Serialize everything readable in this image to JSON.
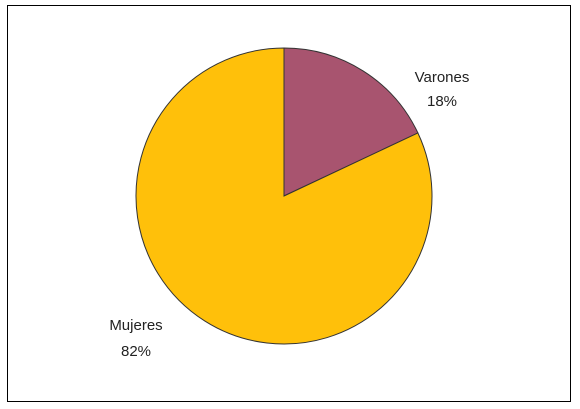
{
  "chart_data": {
    "type": "pie",
    "slices": [
      {
        "label": "Varones",
        "value": 18,
        "value_label": "18%",
        "color": "#A8546F"
      },
      {
        "label": "Mujeres",
        "value": 82,
        "value_label": "82%",
        "color": "#FFC00A"
      }
    ],
    "start_angle": "12 o'clock",
    "direction": "clockwise",
    "legend": "none",
    "slice_border_color": "#333333"
  }
}
